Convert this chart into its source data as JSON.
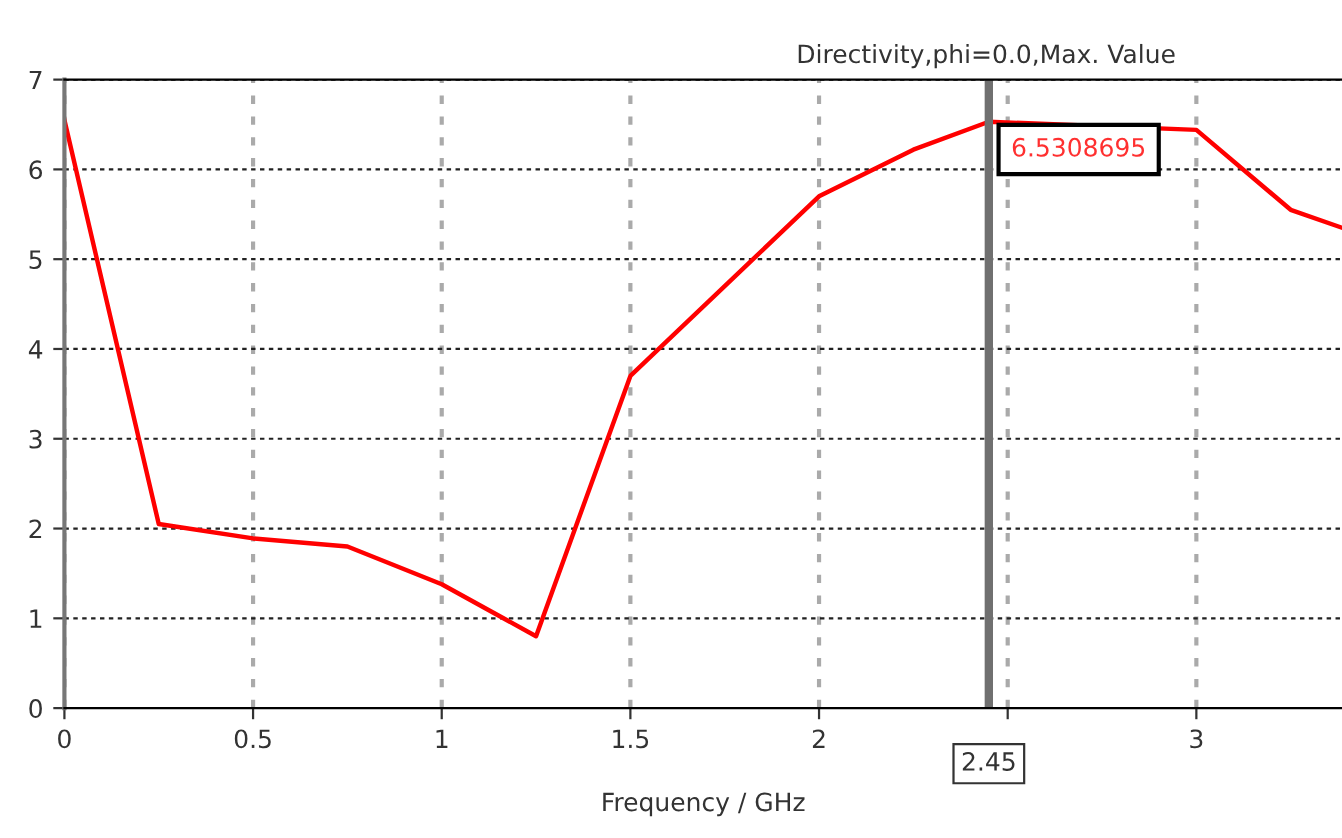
{
  "chart_data": {
    "type": "line",
    "title": "Directivity,phi=0.0,Max. Value",
    "xlabel": "Frequency / GHz",
    "x": [
      0,
      0.25,
      0.5,
      0.75,
      1.0,
      1.25,
      1.5,
      1.75,
      2.0,
      2.25,
      2.45,
      3.0,
      3.25,
      3.386
    ],
    "series": [
      {
        "color": "#ff0000",
        "values": [
          6.55,
          2.05,
          1.89,
          1.8,
          1.38,
          0.8,
          3.7,
          4.7,
          5.7,
          6.22,
          6.5308695,
          6.44,
          5.55,
          5.35
        ]
      }
    ],
    "xlim": [
      0,
      3.386
    ],
    "ylim": [
      0,
      7
    ],
    "xticks": [
      0,
      0.5,
      1,
      1.5,
      2,
      {
        "value": 2.5,
        "label": null
      },
      3
    ],
    "yticks": [
      0,
      1,
      2,
      3,
      4,
      5,
      6,
      7
    ],
    "grid": true,
    "marker": "none",
    "line_style": "solid",
    "ref_lines": [
      {
        "axis": "x",
        "value": 2.45,
        "label": "2.45",
        "color": "#707070"
      }
    ],
    "annotations": [
      {
        "text": "6.5308695",
        "x": 2.45,
        "y": 6.5308695
      }
    ]
  }
}
